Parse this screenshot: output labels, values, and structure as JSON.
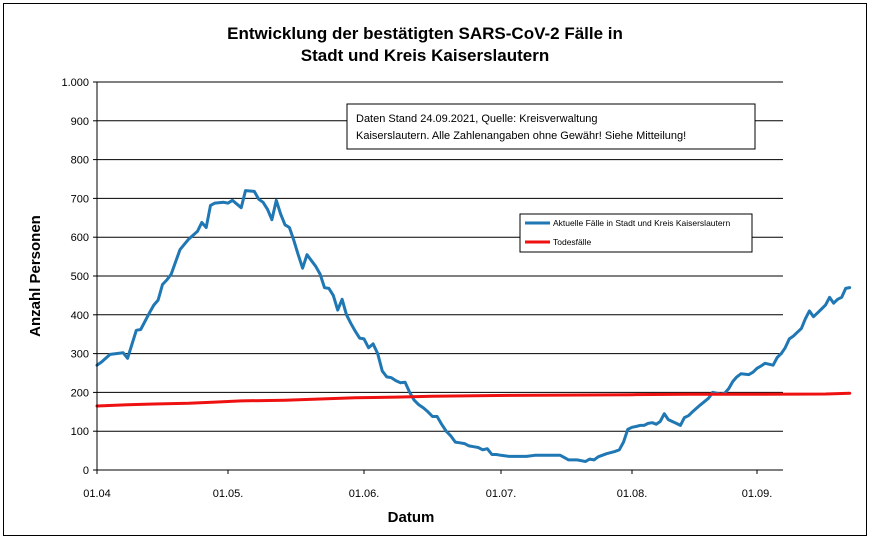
{
  "chart_data": {
    "type": "line",
    "title": "Entwicklung der bestätigten SARS-CoV-2 Fälle in Stadt und Kreis Kaiserslautern",
    "title_lines": [
      "Entwicklung der bestätigten SARS-CoV-2 Fälle in",
      "Stadt und Kreis Kaiserslautern"
    ],
    "xlabel": "Datum",
    "ylabel": "Anzahl Personen",
    "x_range": [
      "2021-04-01",
      "2021-09-24"
    ],
    "ylim": [
      0,
      1000
    ],
    "y_ticks": [
      0,
      100,
      200,
      300,
      400,
      500,
      600,
      700,
      800,
      900,
      1000
    ],
    "y_tick_labels": [
      "0",
      "100",
      "200",
      "300",
      "400",
      "500",
      "600",
      "700",
      "800",
      "900",
      "1.000"
    ],
    "x_ticks": [
      {
        "date": "2021-04-01",
        "label": "01.04"
      },
      {
        "date": "2021-05-01",
        "label": "01.05."
      },
      {
        "date": "2021-06-01",
        "label": "01.06."
      },
      {
        "date": "2021-07-01",
        "label": "01.07."
      },
      {
        "date": "2021-08-01",
        "label": "01.08."
      },
      {
        "date": "2021-09-01",
        "label": "01.09."
      }
    ],
    "grid": "horizontal",
    "legend_position": "right",
    "annotation_lines": [
      "Daten Stand 24.09.2021, Quelle: Kreisverwaltung",
      "Kaiserslautern. Alle Zahlenangaben ohne Gewähr! Siehe Mitteilung!"
    ],
    "series": [
      {
        "name": "Aktuelle Fälle in Stadt und Kreis Kaiserslautern",
        "color": "#1f77b4",
        "points": [
          [
            "2021-04-01",
            270
          ],
          [
            "2021-04-02",
            278
          ],
          [
            "2021-04-04",
            298
          ],
          [
            "2021-04-07",
            302
          ],
          [
            "2021-04-08",
            288
          ],
          [
            "2021-04-10",
            360
          ],
          [
            "2021-04-11",
            362
          ],
          [
            "2021-04-13",
            405
          ],
          [
            "2021-04-14",
            425
          ],
          [
            "2021-04-15",
            438
          ],
          [
            "2021-04-16",
            478
          ],
          [
            "2021-04-17",
            490
          ],
          [
            "2021-04-18",
            505
          ],
          [
            "2021-04-20",
            568
          ],
          [
            "2021-04-22",
            595
          ],
          [
            "2021-04-24",
            615
          ],
          [
            "2021-04-25",
            638
          ],
          [
            "2021-04-26",
            625
          ],
          [
            "2021-04-27",
            682
          ],
          [
            "2021-04-28",
            688
          ],
          [
            "2021-04-30",
            690
          ],
          [
            "2021-05-01",
            688
          ],
          [
            "2021-05-02",
            695
          ],
          [
            "2021-05-04",
            676
          ],
          [
            "2021-05-05",
            720
          ],
          [
            "2021-05-07",
            718
          ],
          [
            "2021-05-08",
            698
          ],
          [
            "2021-05-09",
            690
          ],
          [
            "2021-05-10",
            672
          ],
          [
            "2021-05-11",
            645
          ],
          [
            "2021-05-12",
            695
          ],
          [
            "2021-05-13",
            660
          ],
          [
            "2021-05-14",
            632
          ],
          [
            "2021-05-15",
            625
          ],
          [
            "2021-05-16",
            592
          ],
          [
            "2021-05-17",
            555
          ],
          [
            "2021-05-18",
            520
          ],
          [
            "2021-05-19",
            555
          ],
          [
            "2021-05-21",
            525
          ],
          [
            "2021-05-22",
            505
          ],
          [
            "2021-05-23",
            470
          ],
          [
            "2021-05-24",
            468
          ],
          [
            "2021-05-25",
            450
          ],
          [
            "2021-05-26",
            412
          ],
          [
            "2021-05-27",
            440
          ],
          [
            "2021-05-28",
            400
          ],
          [
            "2021-05-29",
            378
          ],
          [
            "2021-05-30",
            358
          ],
          [
            "2021-05-31",
            340
          ],
          [
            "2021-06-01",
            338
          ],
          [
            "2021-06-02",
            315
          ],
          [
            "2021-06-03",
            325
          ],
          [
            "2021-06-04",
            300
          ],
          [
            "2021-06-05",
            255
          ],
          [
            "2021-06-06",
            240
          ],
          [
            "2021-06-07",
            238
          ],
          [
            "2021-06-08",
            230
          ],
          [
            "2021-06-09",
            225
          ],
          [
            "2021-06-10",
            226
          ],
          [
            "2021-06-11",
            200
          ],
          [
            "2021-06-12",
            180
          ],
          [
            "2021-06-13",
            168
          ],
          [
            "2021-06-14",
            160
          ],
          [
            "2021-06-15",
            150
          ],
          [
            "2021-06-16",
            138
          ],
          [
            "2021-06-17",
            138
          ],
          [
            "2021-06-18",
            118
          ],
          [
            "2021-06-19",
            100
          ],
          [
            "2021-06-20",
            88
          ],
          [
            "2021-06-21",
            72
          ],
          [
            "2021-06-22",
            70
          ],
          [
            "2021-06-23",
            68
          ],
          [
            "2021-06-24",
            62
          ],
          [
            "2021-06-25",
            60
          ],
          [
            "2021-06-26",
            58
          ],
          [
            "2021-06-27",
            52
          ],
          [
            "2021-06-28",
            55
          ],
          [
            "2021-06-29",
            40
          ],
          [
            "2021-06-30",
            40
          ],
          [
            "2021-07-01",
            38
          ],
          [
            "2021-07-03",
            35
          ],
          [
            "2021-07-07",
            35
          ],
          [
            "2021-07-09",
            38
          ],
          [
            "2021-07-13",
            38
          ],
          [
            "2021-07-15",
            38
          ],
          [
            "2021-07-16",
            32
          ],
          [
            "2021-07-17",
            26
          ],
          [
            "2021-07-19",
            26
          ],
          [
            "2021-07-20",
            24
          ],
          [
            "2021-07-21",
            22
          ],
          [
            "2021-07-22",
            28
          ],
          [
            "2021-07-23",
            26
          ],
          [
            "2021-07-24",
            34
          ],
          [
            "2021-07-26",
            42
          ],
          [
            "2021-07-28",
            48
          ],
          [
            "2021-07-29",
            52
          ],
          [
            "2021-07-30",
            72
          ],
          [
            "2021-07-31",
            105
          ],
          [
            "2021-08-01",
            110
          ],
          [
            "2021-08-02",
            112
          ],
          [
            "2021-08-03",
            115
          ],
          [
            "2021-08-04",
            115
          ],
          [
            "2021-08-05",
            120
          ],
          [
            "2021-08-06",
            122
          ],
          [
            "2021-08-07",
            118
          ],
          [
            "2021-08-08",
            125
          ],
          [
            "2021-08-09",
            145
          ],
          [
            "2021-08-10",
            130
          ],
          [
            "2021-08-11",
            125
          ],
          [
            "2021-08-12",
            120
          ],
          [
            "2021-08-13",
            115
          ],
          [
            "2021-08-14",
            135
          ],
          [
            "2021-08-15",
            140
          ],
          [
            "2021-08-16",
            150
          ],
          [
            "2021-08-18",
            168
          ],
          [
            "2021-08-20",
            185
          ],
          [
            "2021-08-21",
            200
          ],
          [
            "2021-08-22",
            198
          ],
          [
            "2021-08-23",
            196
          ],
          [
            "2021-08-24",
            198
          ],
          [
            "2021-08-25",
            210
          ],
          [
            "2021-08-26",
            228
          ],
          [
            "2021-08-27",
            240
          ],
          [
            "2021-08-28",
            248
          ],
          [
            "2021-08-30",
            246
          ],
          [
            "2021-08-31",
            252
          ],
          [
            "2021-09-01",
            262
          ],
          [
            "2021-09-02",
            268
          ],
          [
            "2021-09-03",
            275
          ],
          [
            "2021-09-05",
            270
          ],
          [
            "2021-09-06",
            290
          ],
          [
            "2021-09-07",
            300
          ],
          [
            "2021-09-08",
            315
          ],
          [
            "2021-09-09",
            338
          ],
          [
            "2021-09-10",
            345
          ],
          [
            "2021-09-11",
            355
          ],
          [
            "2021-09-12",
            365
          ],
          [
            "2021-09-13",
            390
          ],
          [
            "2021-09-14",
            410
          ],
          [
            "2021-09-15",
            395
          ],
          [
            "2021-09-16",
            405
          ],
          [
            "2021-09-17",
            415
          ],
          [
            "2021-09-18",
            425
          ],
          [
            "2021-09-19",
            445
          ],
          [
            "2021-09-20",
            430
          ],
          [
            "2021-09-21",
            440
          ],
          [
            "2021-09-22",
            445
          ],
          [
            "2021-09-23",
            468
          ],
          [
            "2021-09-24",
            470
          ]
        ]
      },
      {
        "name": "Todesfälle",
        "color": "#ee1111",
        "points": [
          [
            "2021-04-01",
            165
          ],
          [
            "2021-04-08",
            168
          ],
          [
            "2021-04-14",
            170
          ],
          [
            "2021-04-22",
            172
          ],
          [
            "2021-04-28",
            175
          ],
          [
            "2021-05-04",
            178
          ],
          [
            "2021-05-14",
            180
          ],
          [
            "2021-05-22",
            183
          ],
          [
            "2021-05-30",
            186
          ],
          [
            "2021-06-08",
            188
          ],
          [
            "2021-06-16",
            190
          ],
          [
            "2021-06-30",
            192
          ],
          [
            "2021-07-15",
            193
          ],
          [
            "2021-08-01",
            194
          ],
          [
            "2021-08-15",
            195
          ],
          [
            "2021-09-01",
            195
          ],
          [
            "2021-09-18",
            196
          ],
          [
            "2021-09-24",
            198
          ]
        ]
      }
    ]
  }
}
